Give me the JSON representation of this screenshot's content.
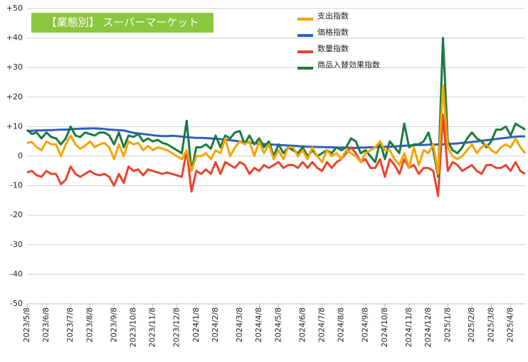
{
  "chart_data": {
    "type": "line",
    "title": "【業態別】 スーパーマーケット",
    "title_color": "#8dc63f",
    "categories": [
      "2023/5/8",
      null,
      null,
      null,
      "2023/6/8",
      null,
      null,
      null,
      null,
      "2023/7/8",
      null,
      null,
      null,
      "2023/8/8",
      null,
      null,
      null,
      null,
      "2023/9/8",
      null,
      null,
      null,
      "2023/10/8",
      null,
      null,
      null,
      "2023/11/8",
      null,
      null,
      null,
      null,
      "2023/12/8",
      null,
      null,
      null,
      "2024/1/8",
      null,
      null,
      null,
      "2024/2/8",
      null,
      null,
      null,
      null,
      "2024/3/8",
      null,
      null,
      null,
      "2024/4/8",
      null,
      null,
      null,
      "2024/5/8",
      null,
      null,
      null,
      null,
      "2024/6/8",
      null,
      null,
      null,
      "2024/7/8",
      null,
      null,
      null,
      "2024/8/8",
      null,
      null,
      null,
      null,
      "2024/9/8",
      null,
      null,
      null,
      "2024/10/8",
      null,
      null,
      null,
      null,
      "2024/11/8",
      null,
      null,
      null,
      "2024/12/8",
      null,
      null,
      null,
      "2025/1/8",
      null,
      null,
      null,
      null,
      "2025/2/8",
      null,
      null,
      null,
      "2025/3/8",
      null,
      null,
      null,
      "2025/4/8",
      null,
      null,
      null
    ],
    "series": [
      {
        "name": "支出指数",
        "color": "#f5a400",
        "values": [
          4.5,
          4.8,
          3,
          2,
          5,
          4,
          4,
          0,
          4,
          7,
          4,
          2.5,
          3.5,
          5,
          3,
          4,
          4.5,
          3,
          -1,
          4,
          0,
          5,
          4,
          4.5,
          2,
          3.5,
          2,
          3,
          2.5,
          2,
          1,
          0,
          -1,
          2,
          -5,
          0,
          0,
          1,
          -1,
          2,
          1,
          6,
          0,
          3,
          5,
          4,
          5,
          0,
          5,
          1,
          4,
          -1,
          2,
          -1,
          3,
          3,
          0,
          2,
          -1,
          3,
          0,
          -2,
          2,
          0,
          1,
          -1,
          2,
          1,
          0,
          -2,
          1,
          2,
          3,
          5,
          2,
          2,
          -1,
          -3,
          1,
          -4,
          3,
          -3,
          2,
          1,
          4,
          -6,
          24,
          3,
          0,
          -1,
          0,
          2,
          4,
          1,
          3,
          4,
          2,
          1,
          3,
          4,
          3,
          6,
          3,
          1
        ]
      },
      {
        "name": "価格指数",
        "color": "#2f5fbf",
        "values": [
          8.5,
          8.6,
          8.7,
          8.7,
          8.8,
          8.8,
          8.9,
          9.0,
          9.0,
          9.1,
          9.2,
          9.3,
          9.3,
          9.4,
          9.4,
          9.3,
          9.2,
          9.0,
          8.9,
          8.8,
          8.7,
          8.3,
          7.9,
          7.7,
          7.5,
          7.3,
          7.1,
          6.9,
          6.8,
          6.8,
          6.9,
          6.8,
          6.6,
          6.5,
          6.3,
          6.2,
          6.2,
          6.1,
          6.0,
          5.9,
          5.8,
          5.6,
          5.4,
          5.2,
          5.0,
          4.8,
          4.6,
          4.4,
          4.2,
          4.1,
          4.0,
          3.9,
          3.8,
          3.7,
          3.6,
          3.5,
          3.4,
          3.3,
          3.2,
          3.2,
          3.1,
          3.1,
          3.0,
          3.0,
          2.9,
          2.9,
          2.9,
          2.8,
          2.8,
          2.9,
          2.9,
          3.0,
          3.0,
          3.1,
          3.2,
          3.2,
          3.3,
          3.4,
          3.5,
          3.6,
          3.7,
          3.8,
          3.8,
          3.9,
          3.9,
          4.0,
          4.0,
          4.1,
          4.2,
          4.3,
          4.5,
          4.6,
          4.8,
          5.0,
          5.2,
          5.4,
          5.6,
          5.8,
          6.0,
          6.2,
          6.4,
          6.6,
          6.7,
          6.7
        ]
      },
      {
        "name": "数量指数",
        "color": "#e8432d",
        "values": [
          -5.5,
          -5,
          -6.5,
          -7,
          -5,
          -6,
          -6,
          -9.5,
          -8,
          -3.5,
          -6,
          -7,
          -6,
          -5,
          -6,
          -6.5,
          -6,
          -7,
          -10,
          -6,
          -9,
          -3.5,
          -5,
          -4.5,
          -6.5,
          -4.5,
          -5,
          -5.5,
          -6,
          -5.5,
          -6,
          -6.5,
          -7,
          2,
          -12,
          -5,
          -6,
          -4.5,
          -6,
          -2,
          -6,
          -2,
          -3,
          -4,
          -2,
          -3,
          -6,
          -4,
          -5,
          -3,
          -4,
          -3,
          -2,
          -4,
          -3,
          -3,
          -4,
          -2,
          -4,
          -2,
          -4,
          -5,
          -2,
          -4,
          -2,
          -1,
          1,
          3,
          1,
          -2,
          -1,
          -4,
          -4,
          -1,
          -7,
          -1,
          -3,
          -6,
          -1,
          -4,
          -3,
          -6,
          -4,
          -4,
          -5,
          -13.5,
          14,
          -5,
          -2,
          -3,
          -5,
          -4,
          -3,
          -5,
          -6,
          -3,
          -3,
          -4,
          -4,
          -3,
          -5,
          -2,
          -5,
          -6
        ]
      },
      {
        "name": "商品入替効果指数",
        "color": "#1b7a3e",
        "values": [
          9,
          7.5,
          8,
          6,
          8,
          6.5,
          6,
          4,
          6,
          10,
          7,
          6.5,
          8,
          7.5,
          7,
          8,
          8,
          7,
          4,
          8,
          3,
          7,
          6.5,
          7.5,
          5,
          6,
          5,
          5.5,
          4.5,
          4,
          3,
          2,
          1,
          12,
          -5,
          3,
          3,
          4,
          2.5,
          7,
          3,
          7,
          6,
          8,
          8.5,
          4,
          7,
          4,
          6,
          3,
          5,
          0,
          4,
          1,
          3,
          2,
          1,
          3,
          0,
          2,
          0,
          1,
          2,
          1,
          3,
          2,
          3,
          6,
          5,
          1,
          2,
          0,
          -2,
          5,
          -1,
          5,
          3,
          1,
          11,
          3,
          4,
          4,
          5,
          8,
          2,
          -7,
          40,
          5,
          2,
          1,
          3,
          6,
          8,
          6,
          5,
          3,
          5,
          9,
          9,
          10,
          7,
          11,
          10,
          9
        ]
      }
    ],
    "ylim": [
      -50,
      50
    ],
    "yticks": [
      {
        "value": 50,
        "label": "+50"
      },
      {
        "value": 40,
        "label": "+40"
      },
      {
        "value": 30,
        "label": "+30"
      },
      {
        "value": 20,
        "label": "+20"
      },
      {
        "value": 10,
        "label": "+10"
      },
      0,
      -10,
      -20,
      -30,
      -40,
      -50
    ],
    "grid": true,
    "legend": "top"
  }
}
